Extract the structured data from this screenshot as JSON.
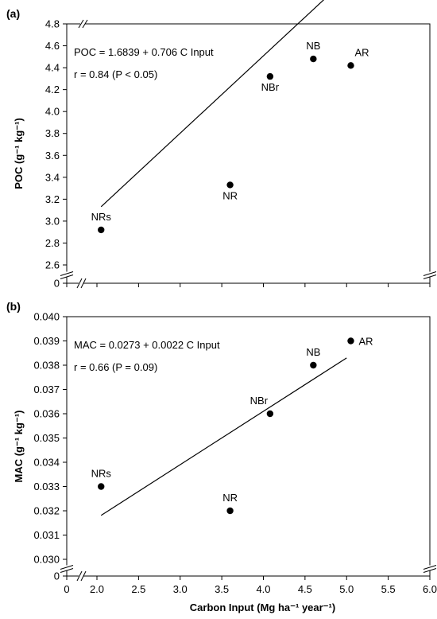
{
  "chart_data": [
    {
      "type": "scatter",
      "panel": "(a)",
      "ylabel": "POC (g⁻¹ kg⁻¹)",
      "xlabel": "",
      "xlim": [
        0,
        6.0
      ],
      "ylim": [
        2.6,
        4.8
      ],
      "y_axis_break": true,
      "x_axis_break": true,
      "y_ticks": [
        "0",
        "2.6",
        "2.8",
        "3.0",
        "3.2",
        "3.4",
        "3.6",
        "3.8",
        "4.0",
        "4.2",
        "4.4",
        "4.6",
        "4.8"
      ],
      "points": [
        {
          "label": "NRs",
          "x": 2.05,
          "y": 2.92,
          "label_pos": "above"
        },
        {
          "label": "NR",
          "x": 3.6,
          "y": 3.33,
          "label_pos": "below"
        },
        {
          "label": "NBr",
          "x": 4.08,
          "y": 4.32,
          "label_pos": "below"
        },
        {
          "label": "NB",
          "x": 4.6,
          "y": 4.48,
          "label_pos": "above"
        },
        {
          "label": "AR",
          "x": 5.05,
          "y": 4.42,
          "label_pos": "above-right"
        }
      ],
      "fit_line": {
        "x": [
          2.05,
          5.0
        ],
        "intercept": 1.6839,
        "slope": 0.706
      },
      "annotations": [
        "POC = 1.6839 + 0.706 C Input",
        "r = 0.84 (P < 0.05)"
      ]
    },
    {
      "type": "scatter",
      "panel": "(b)",
      "ylabel": "MAC (g⁻¹ kg⁻¹)",
      "xlabel": "Carbon Input (Mg ha⁻¹ year⁻¹)",
      "xlim": [
        0,
        6.0
      ],
      "ylim": [
        0.03,
        0.04
      ],
      "y_axis_break": true,
      "x_axis_break": true,
      "x_ticks": [
        "0",
        "2.0",
        "2.5",
        "3.0",
        "3.5",
        "4.0",
        "4.5",
        "5.0",
        "5.5",
        "6.0"
      ],
      "y_ticks": [
        "0",
        "0.030",
        "0.031",
        "0.032",
        "0.033",
        "0.034",
        "0.035",
        "0.036",
        "0.037",
        "0.038",
        "0.039",
        "0.040"
      ],
      "points": [
        {
          "label": "NRs",
          "x": 2.05,
          "y": 0.033,
          "label_pos": "above"
        },
        {
          "label": "NR",
          "x": 3.6,
          "y": 0.032,
          "label_pos": "above"
        },
        {
          "label": "NBr",
          "x": 4.08,
          "y": 0.036,
          "label_pos": "above-left"
        },
        {
          "label": "NB",
          "x": 4.6,
          "y": 0.038,
          "label_pos": "above"
        },
        {
          "label": "AR",
          "x": 5.05,
          "y": 0.039,
          "label_pos": "right"
        }
      ],
      "fit_line": {
        "x": [
          2.05,
          5.0
        ],
        "intercept": 0.0273,
        "slope": 0.0022
      },
      "annotations": [
        "MAC = 0.0273 + 0.0022 C Input",
        "r = 0.66 (P = 0.09)"
      ]
    }
  ]
}
